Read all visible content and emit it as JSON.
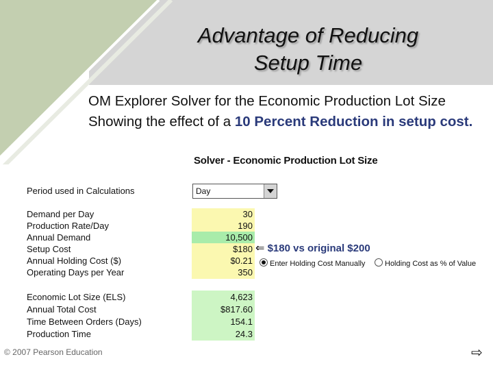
{
  "slide": {
    "title_line1": "Advantage of Reducing",
    "title_line2": "Setup Time",
    "subtitle_part1": "OM Explorer Solver for the Economic Production Lot Size Showing the effect of a ",
    "subtitle_highlight": "10 Percent Reduction in setup cost.",
    "footer": "© 2007 Pearson Education",
    "next_arrow": "⇨"
  },
  "solver": {
    "title": "Solver - Economic Production Lot Size",
    "period_label": "Period used in Calculations",
    "period_value": "Day",
    "inputs": [
      {
        "label": "Demand per Day",
        "value": "30"
      },
      {
        "label": "Production Rate/Day",
        "value": "190"
      },
      {
        "label": "Annual Demand",
        "value": "10,500"
      },
      {
        "label": "Setup Cost",
        "value": "$180"
      },
      {
        "label": "Annual Holding Cost ($)",
        "value": "$0.21"
      },
      {
        "label": "Operating Days per Year",
        "value": "350"
      }
    ],
    "outputs": [
      {
        "label": "Economic Lot Size (ELS)",
        "value": "4,623"
      },
      {
        "label": "Annual Total Cost",
        "value": "$817.60"
      },
      {
        "label": "Time Between Orders (Days)",
        "value": "154.1"
      },
      {
        "label": "Production Time",
        "value": "24.3"
      }
    ],
    "annotation_arrow": "⇐",
    "annotation_text": "$180 vs original $200",
    "radio_manual": "Enter Holding Cost Manually",
    "radio_percent": "Holding Cost as % of Value"
  }
}
